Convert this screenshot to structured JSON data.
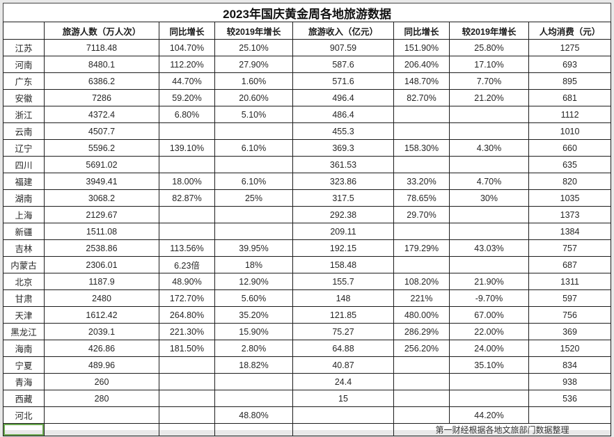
{
  "title": "2023年国庆黄金周各地旅游数据",
  "table": {
    "columns": [
      "",
      "旅游人数（万人次）",
      "同比增长",
      "较2019年增长",
      "旅游收入（亿元）",
      "同比增长",
      "较2019年增长",
      "人均消费（元）"
    ],
    "rows": [
      [
        "江苏",
        "7118.48",
        "104.70%",
        "25.10%",
        "907.59",
        "151.90%",
        "25.80%",
        "1275"
      ],
      [
        "河南",
        "8480.1",
        "112.20%",
        "27.90%",
        "587.6",
        "206.40%",
        "17.10%",
        "693"
      ],
      [
        "广东",
        "6386.2",
        "44.70%",
        "1.60%",
        "571.6",
        "148.70%",
        "7.70%",
        "895"
      ],
      [
        "安徽",
        "7286",
        "59.20%",
        "20.60%",
        "496.4",
        "82.70%",
        "21.20%",
        "681"
      ],
      [
        "浙江",
        "4372.4",
        "6.80%",
        "5.10%",
        "486.4",
        "",
        "",
        "1112"
      ],
      [
        "云南",
        "4507.7",
        "",
        "",
        "455.3",
        "",
        "",
        "1010"
      ],
      [
        "辽宁",
        "5596.2",
        "139.10%",
        "6.10%",
        "369.3",
        "158.30%",
        "4.30%",
        "660"
      ],
      [
        "四川",
        "5691.02",
        "",
        "",
        "361.53",
        "",
        "",
        "635"
      ],
      [
        "福建",
        "3949.41",
        "18.00%",
        "6.10%",
        "323.86",
        "33.20%",
        "4.70%",
        "820"
      ],
      [
        "湖南",
        "3068.2",
        "82.87%",
        "25%",
        "317.5",
        "78.65%",
        "30%",
        "1035"
      ],
      [
        "上海",
        "2129.67",
        "",
        "",
        "292.38",
        "29.70%",
        "",
        "1373"
      ],
      [
        "新疆",
        "1511.08",
        "",
        "",
        "209.11",
        "",
        "",
        "1384"
      ],
      [
        "吉林",
        "2538.86",
        "113.56%",
        "39.95%",
        "192.15",
        "179.29%",
        "43.03%",
        "757"
      ],
      [
        "内蒙古",
        "2306.01",
        "6.23倍",
        "18%",
        "158.48",
        "",
        "",
        "687"
      ],
      [
        "北京",
        "1187.9",
        "48.90%",
        "12.90%",
        "155.7",
        "108.20%",
        "21.90%",
        "1311"
      ],
      [
        "甘肃",
        "2480",
        "172.70%",
        "5.60%",
        "148",
        "221%",
        "-9.70%",
        "597"
      ],
      [
        "天津",
        "1612.42",
        "264.80%",
        "35.20%",
        "121.85",
        "480.00%",
        "67.00%",
        "756"
      ],
      [
        "黑龙江",
        "2039.1",
        "221.30%",
        "15.90%",
        "75.27",
        "286.29%",
        "22.00%",
        "369"
      ],
      [
        "海南",
        "426.86",
        "181.50%",
        "2.80%",
        "64.88",
        "256.20%",
        "24.00%",
        "1520"
      ],
      [
        "宁夏",
        "489.96",
        "",
        "18.82%",
        "40.87",
        "",
        "35.10%",
        "834"
      ],
      [
        "青海",
        "260",
        "",
        "",
        "24.4",
        "",
        "",
        "938"
      ],
      [
        "西藏",
        "280",
        "",
        "",
        "15",
        "",
        "",
        "536"
      ],
      [
        "河北",
        "",
        "",
        "48.80%",
        "",
        "",
        "44.20%",
        ""
      ]
    ]
  },
  "footer": {
    "note": "第一财经根据各地文旅部门数据整理"
  },
  "colors": {
    "border": "#1c1c1c",
    "active_cell_green": "#6aa84f",
    "page_background": "#e9e9e9",
    "sheet_background": "#ffffff"
  }
}
